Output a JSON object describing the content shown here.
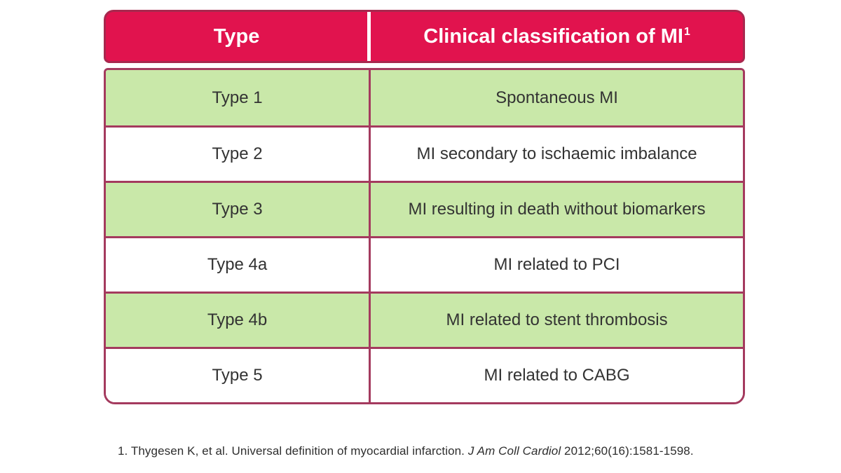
{
  "table": {
    "header": {
      "col1": "Type",
      "col2": "Clinical classification of MI",
      "col2_superscript": "1"
    },
    "rows": [
      {
        "type": "Type 1",
        "classification": "Spontaneous MI"
      },
      {
        "type": "Type 2",
        "classification": "MI secondary to ischaemic imbalance"
      },
      {
        "type": "Type 3",
        "classification": "MI resulting in death without biomarkers"
      },
      {
        "type": "Type 4a",
        "classification": "MI related to PCI"
      },
      {
        "type": "Type 4b",
        "classification": "MI related to stent thrombosis"
      },
      {
        "type": "Type 5",
        "classification": "MI related to CABG"
      }
    ]
  },
  "footnote": {
    "text_before_italic": "1. Thygesen K, et al. Universal definition of myocardial infarction. ",
    "italic": "J Am Coll Cardiol",
    "text_after_italic": " 2012;60(16):1581-1598."
  },
  "colors": {
    "header_bg": "#e1134e",
    "header_border": "#a8284e",
    "body_border": "#a43a5e",
    "row_shaded_bg": "#c9e8a9",
    "row_plain_bg": "#ffffff",
    "header_text": "#ffffff",
    "body_text": "#333333",
    "footnote_text": "#2e2e2e",
    "page_bg": "#ffffff"
  }
}
